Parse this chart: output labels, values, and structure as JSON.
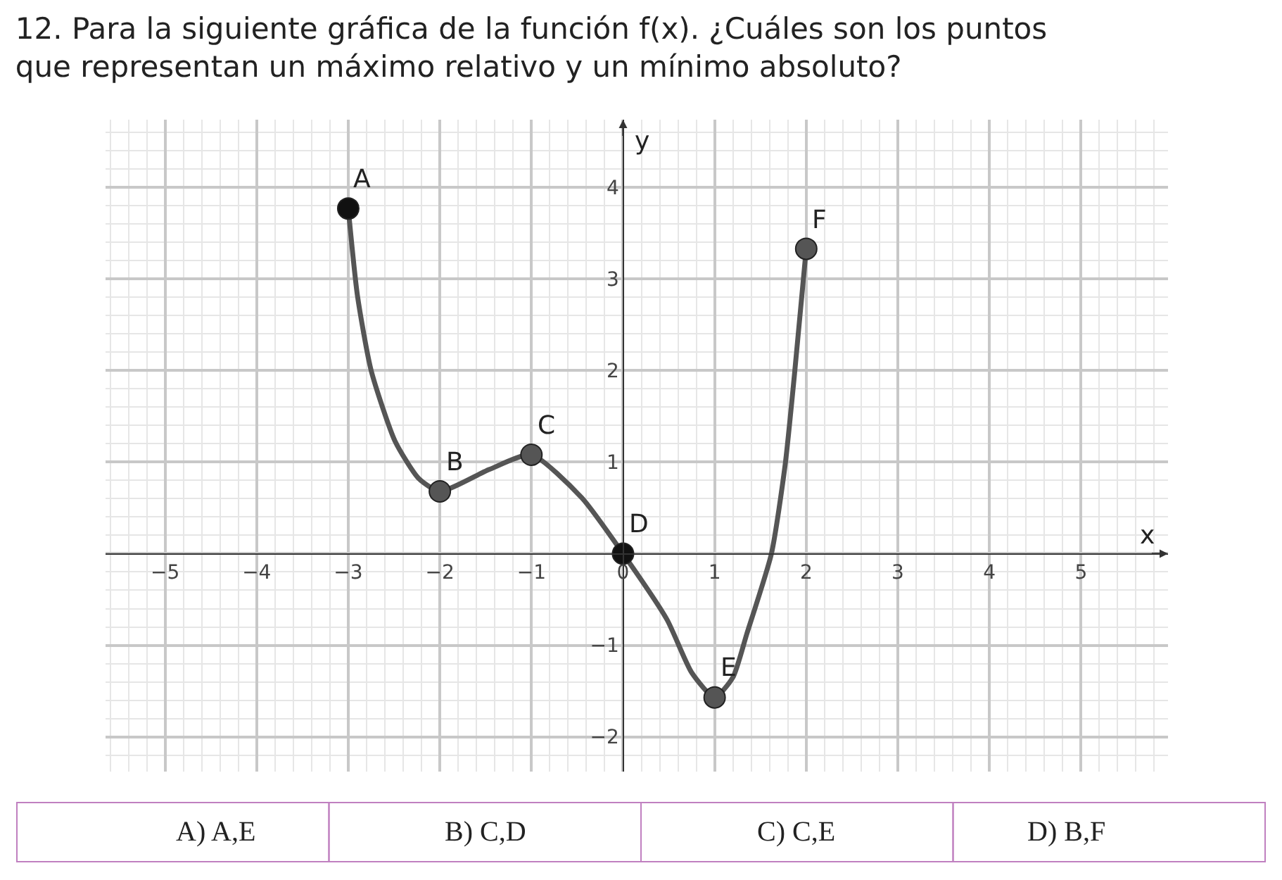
{
  "chart_data": {
    "type": "line",
    "title": "12. Para la siguiente gráfica de la función f(x). ¿Cuáles son los puntos\nque representan un máximo relativo y un mínimo absoluto?",
    "xlabel": "x",
    "ylabel": "y",
    "series": [
      {
        "color": "#555555",
        "marker": "none",
        "line_style": "solid",
        "x": [
          -3,
          -2.9,
          -2.75,
          -2.49,
          -2.23,
          -2,
          -1.46,
          -1,
          -0.45,
          0,
          0.48,
          0.75,
          1,
          1.2,
          1.35,
          1.62,
          1.77,
          1.87,
          2
        ],
        "values": [
          3.77,
          2.82,
          2.0,
          1.23,
          0.82,
          0.68,
          0.92,
          1.08,
          0.61,
          0,
          -0.72,
          -1.3,
          -1.57,
          -1.35,
          -0.88,
          0,
          0.97,
          1.94,
          3.33
        ]
      },
      {
        "type": "scatter",
        "marker": "circle",
        "x": [
          -3,
          -2,
          -1,
          0,
          1,
          2
        ],
        "values": [
          3.77,
          0.68,
          1.08,
          0,
          -1.57,
          3.33
        ],
        "colors": [
          "#111111",
          "#555555",
          "#555555",
          "#111111",
          "#555555",
          "#555555"
        ]
      }
    ],
    "annotations": [
      {
        "text": "A",
        "x": -3,
        "y": 3.77
      },
      {
        "text": "B",
        "x": -2,
        "y": 0.68
      },
      {
        "text": "C",
        "x": -1,
        "y": 1.08
      },
      {
        "text": "D",
        "x": 0,
        "y": 0
      },
      {
        "text": "E",
        "x": 1,
        "y": -1.57
      },
      {
        "text": "F",
        "x": 2,
        "y": 3.33
      },
      "A) A,E",
      "B) C,D",
      "C) C,E",
      "D) B,F"
    ],
    "xlim": [
      -5.65,
      5.95
    ],
    "ylim": [
      -2.38,
      4.74
    ],
    "xticks": [
      -5,
      -4,
      -3,
      -2,
      -1,
      0,
      1,
      2,
      3,
      4,
      5
    ],
    "yticks": [
      -2,
      -1,
      {
        "value": 0,
        "label": null
      },
      1,
      2,
      3,
      4
    ],
    "grid": true
  }
}
